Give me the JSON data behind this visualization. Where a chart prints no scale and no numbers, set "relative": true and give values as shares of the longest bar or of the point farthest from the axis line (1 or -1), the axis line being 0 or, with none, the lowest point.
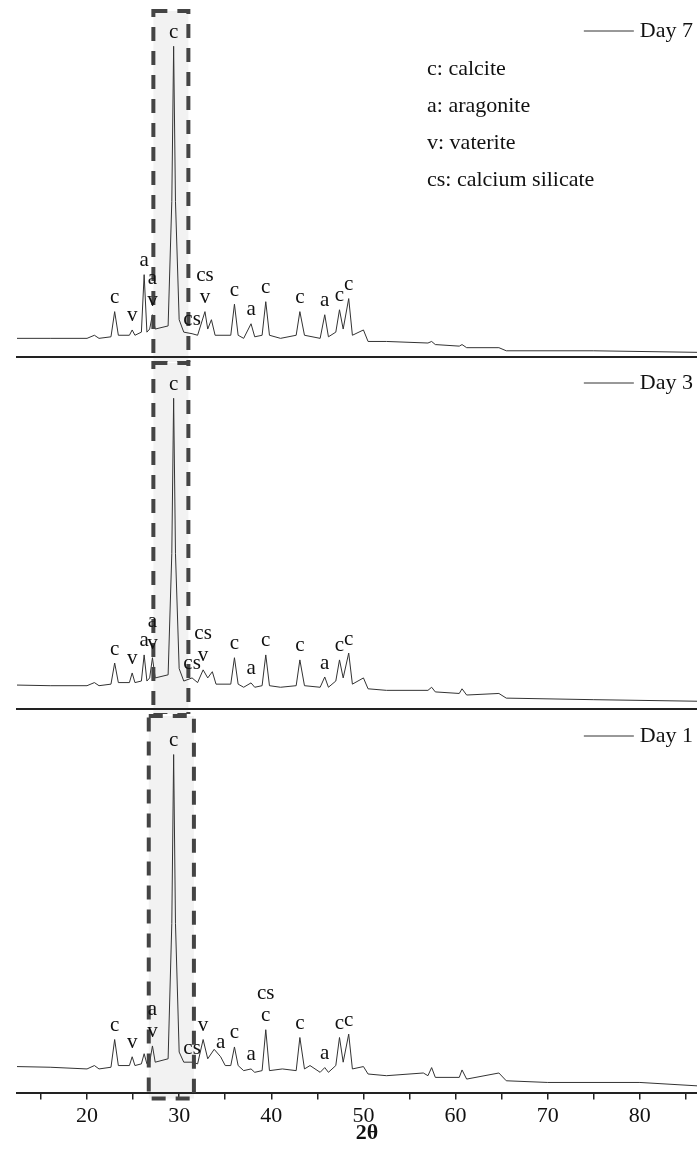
{
  "chart_data": [
    {
      "type": "line",
      "relative": true,
      "legend": "top right",
      "tick_labels": false,
      "xlim": [
        12.4,
        86.2
      ],
      "series": [
        {
          "name": "Day 7",
          "color": "#333333",
          "x": [
            12.4,
            16,
            20,
            20.8,
            21.3,
            22.6,
            23.0,
            23.4,
            24.6,
            24.9,
            25.2,
            25.9,
            26.2,
            26.5,
            26.8,
            27.1,
            27.4,
            28.8,
            29.2,
            29.4,
            29.6,
            30.0,
            30.5,
            31.4,
            32.0,
            32.8,
            33.1,
            33.5,
            33.9,
            35.6,
            36.0,
            36.4,
            37.0,
            37.8,
            38.2,
            39.0,
            39.4,
            39.8,
            41.0,
            42.7,
            43.1,
            43.6,
            45.3,
            45.8,
            46.2,
            47.0,
            47.4,
            47.8,
            48.4,
            48.8,
            50.0,
            50.5,
            52.5,
            57.0,
            57.4,
            57.8,
            60.4,
            60.7,
            61.2,
            64.7,
            65.5,
            75,
            86.2
          ],
          "values": [
            0.06,
            0.06,
            0.06,
            0.07,
            0.06,
            0.065,
            0.146,
            0.07,
            0.07,
            0.087,
            0.07,
            0.08,
            0.265,
            0.08,
            0.09,
            0.136,
            0.09,
            0.1,
            0.5,
            1.0,
            0.5,
            0.12,
            0.08,
            0.075,
            0.07,
            0.146,
            0.09,
            0.12,
            0.07,
            0.07,
            0.17,
            0.07,
            0.06,
            0.107,
            0.065,
            0.07,
            0.178,
            0.07,
            0.06,
            0.07,
            0.146,
            0.07,
            0.06,
            0.136,
            0.065,
            0.08,
            0.152,
            0.09,
            0.188,
            0.07,
            0.087,
            0.05,
            0.05,
            0.045,
            0.05,
            0.04,
            0.035,
            0.04,
            0.03,
            0.03,
            0.02,
            0.02,
            0.015
          ]
        }
      ],
      "bands": [
        {
          "axis": "x",
          "from": 27.2,
          "to": 31.0,
          "color": "#444444"
        }
      ],
      "annotations": [
        "c: calcite",
        "a: aragonite",
        "v: vaterite",
        "cs: calcium silicate",
        {
          "text": "c",
          "x": 23.0,
          "y": 0.146
        },
        {
          "text": "v",
          "x": 24.9,
          "y": 0.087
        },
        {
          "text": "a",
          "x": 26.2,
          "y": 0.265
        },
        {
          "text": "v",
          "x": 27.1,
          "y": 0.136
        },
        {
          "text": "a",
          "x": 27.1,
          "y": 0.136
        },
        {
          "text": "c",
          "x": 29.4,
          "y": 1.0
        },
        {
          "text": "cs",
          "x": 31.4,
          "y": 0.075
        },
        {
          "text": "v",
          "x": 32.8,
          "y": 0.146
        },
        {
          "text": "cs",
          "x": 32.8,
          "y": 0.146
        },
        {
          "text": "c",
          "x": 36.0,
          "y": 0.17
        },
        {
          "text": "a",
          "x": 37.8,
          "y": 0.107
        },
        {
          "text": "c",
          "x": 39.4,
          "y": 0.178
        },
        {
          "text": "c",
          "x": 43.1,
          "y": 0.146
        },
        {
          "text": "a",
          "x": 45.8,
          "y": 0.136
        },
        {
          "text": "c",
          "x": 47.4,
          "y": 0.152
        },
        {
          "text": "c",
          "x": 48.4,
          "y": 0.188
        }
      ]
    },
    {
      "type": "line",
      "relative": true,
      "legend": "top right",
      "tick_labels": false,
      "xlim": [
        12.4,
        86.2
      ],
      "series": [
        {
          "name": "Day 3",
          "color": "#333333",
          "x": [
            12.4,
            16,
            20,
            20.8,
            21.3,
            22.6,
            23.0,
            23.4,
            24.6,
            24.9,
            25.2,
            25.9,
            26.2,
            26.5,
            26.8,
            27.1,
            27.4,
            28.8,
            29.2,
            29.4,
            29.6,
            30.0,
            30.5,
            31.4,
            32.0,
            32.6,
            33.1,
            33.6,
            34.0,
            35.6,
            36.0,
            36.4,
            37.0,
            37.8,
            38.2,
            39.0,
            39.4,
            39.8,
            41.0,
            42.7,
            43.1,
            43.6,
            45.3,
            45.8,
            46.2,
            47.0,
            47.4,
            47.8,
            48.4,
            48.8,
            50.0,
            50.5,
            52.5,
            57.0,
            57.4,
            57.8,
            60.4,
            60.7,
            61.2,
            64.7,
            65.5,
            75,
            86.2
          ],
          "values": [
            0.077,
            0.075,
            0.075,
            0.085,
            0.075,
            0.08,
            0.148,
            0.085,
            0.085,
            0.116,
            0.085,
            0.09,
            0.174,
            0.09,
            0.1,
            0.165,
            0.1,
            0.11,
            0.5,
            1.0,
            0.5,
            0.13,
            0.09,
            0.1,
            0.085,
            0.126,
            0.1,
            0.12,
            0.08,
            0.08,
            0.165,
            0.08,
            0.07,
            0.084,
            0.07,
            0.075,
            0.174,
            0.075,
            0.07,
            0.075,
            0.158,
            0.075,
            0.07,
            0.103,
            0.07,
            0.09,
            0.158,
            0.1,
            0.18,
            0.08,
            0.1,
            0.065,
            0.06,
            0.06,
            0.07,
            0.055,
            0.05,
            0.065,
            0.045,
            0.05,
            0.035,
            0.03,
            0.025
          ]
        }
      ],
      "bands": [
        {
          "axis": "x",
          "from": 27.2,
          "to": 31.0,
          "color": "#444444"
        }
      ],
      "annotations": [
        {
          "text": "c",
          "x": 29.4,
          "y": 1.0
        },
        {
          "text": "c",
          "x": 23.0,
          "y": 0.148
        },
        {
          "text": "v",
          "x": 24.9,
          "y": 0.116
        },
        {
          "text": "a",
          "x": 26.2,
          "y": 0.174
        },
        {
          "text": "v",
          "x": 27.1,
          "y": 0.165
        },
        {
          "text": "a",
          "x": 27.1,
          "y": 0.165
        },
        {
          "text": "cs",
          "x": 31.4,
          "y": 0.1
        },
        {
          "text": "v",
          "x": 32.6,
          "y": 0.126
        },
        {
          "text": "cs",
          "x": 32.6,
          "y": 0.126
        },
        {
          "text": "c",
          "x": 36.0,
          "y": 0.165
        },
        {
          "text": "a",
          "x": 37.8,
          "y": 0.084
        },
        {
          "text": "c",
          "x": 39.4,
          "y": 0.174
        },
        {
          "text": "c",
          "x": 43.1,
          "y": 0.158
        },
        {
          "text": "a",
          "x": 45.8,
          "y": 0.103
        },
        {
          "text": "c",
          "x": 47.4,
          "y": 0.158
        },
        {
          "text": "c",
          "x": 48.4,
          "y": 0.18
        }
      ]
    },
    {
      "type": "line",
      "relative": true,
      "legend": "top right",
      "tick_labels": "x",
      "xlabel": "2θ",
      "xlim": [
        12.4,
        86.2
      ],
      "xticks": [
        {
          "value": 15,
          "label": null
        },
        20,
        {
          "value": 25,
          "label": null
        },
        30,
        {
          "value": 35,
          "label": null
        },
        40,
        {
          "value": 45,
          "label": null
        },
        50,
        {
          "value": 55,
          "label": null
        },
        60,
        {
          "value": 65,
          "label": null
        },
        70,
        {
          "value": 75,
          "label": null
        },
        80,
        {
          "value": 85,
          "label": null
        }
      ],
      "series": [
        {
          "name": "Day 1",
          "color": "#333333",
          "x": [
            12.4,
            16,
            20,
            20.8,
            21.3,
            22.6,
            23.0,
            23.4,
            24.6,
            24.9,
            25.2,
            25.9,
            26.2,
            26.5,
            26.8,
            27.1,
            27.4,
            28.8,
            29.2,
            29.4,
            29.6,
            30.0,
            30.5,
            31.4,
            32.0,
            32.6,
            33.1,
            33.8,
            34.5,
            35.0,
            35.6,
            36.0,
            36.4,
            37.0,
            37.8,
            38.2,
            39.0,
            39.4,
            39.8,
            41.2,
            42.7,
            43.1,
            43.6,
            44.2,
            45.3,
            45.8,
            46.2,
            47.0,
            47.4,
            47.8,
            48.4,
            48.8,
            50.0,
            50.5,
            52.5,
            56.5,
            57.0,
            57.4,
            57.8,
            60.4,
            60.7,
            61.2,
            64.7,
            65.5,
            70,
            80,
            86.2
          ],
          "values": [
            0.077,
            0.075,
            0.07,
            0.08,
            0.07,
            0.075,
            0.157,
            0.08,
            0.08,
            0.106,
            0.08,
            0.085,
            0.115,
            0.085,
            0.09,
            0.138,
            0.09,
            0.1,
            0.5,
            1.0,
            0.5,
            0.12,
            0.09,
            0.09,
            0.085,
            0.157,
            0.1,
            0.128,
            0.106,
            0.08,
            0.08,
            0.135,
            0.08,
            0.065,
            0.07,
            0.06,
            0.065,
            0.186,
            0.065,
            0.07,
            0.065,
            0.163,
            0.07,
            0.08,
            0.06,
            0.074,
            0.06,
            0.08,
            0.163,
            0.09,
            0.173,
            0.07,
            0.077,
            0.055,
            0.05,
            0.058,
            0.05,
            0.074,
            0.045,
            0.045,
            0.067,
            0.04,
            0.058,
            0.035,
            0.03,
            0.03,
            0.02
          ]
        }
      ],
      "bands": [
        {
          "axis": "x",
          "from": 26.7,
          "to": 31.6,
          "color": "#444444"
        }
      ],
      "annotations": [
        {
          "text": "c",
          "x": 29.4,
          "y": 1.0
        },
        {
          "text": "c",
          "x": 23.0,
          "y": 0.157
        },
        {
          "text": "v",
          "x": 24.9,
          "y": 0.106
        },
        {
          "text": "v",
          "x": 27.1,
          "y": 0.138
        },
        {
          "text": "a",
          "x": 27.1,
          "y": 0.138
        },
        {
          "text": "cs",
          "x": 31.4,
          "y": 0.09
        },
        {
          "text": "v",
          "x": 32.6,
          "y": 0.157
        },
        {
          "text": "a",
          "x": 34.5,
          "y": 0.106
        },
        {
          "text": "c",
          "x": 36.0,
          "y": 0.135
        },
        {
          "text": "a",
          "x": 37.8,
          "y": 0.07
        },
        {
          "text": "c",
          "x": 39.4,
          "y": 0.186
        },
        {
          "text": "cs",
          "x": 39.4,
          "y": 0.186
        },
        {
          "text": "c",
          "x": 43.1,
          "y": 0.163
        },
        {
          "text": "a",
          "x": 45.8,
          "y": 0.074
        },
        {
          "text": "c",
          "x": 47.4,
          "y": 0.163
        },
        {
          "text": "c",
          "x": 48.4,
          "y": 0.173
        }
      ]
    }
  ]
}
